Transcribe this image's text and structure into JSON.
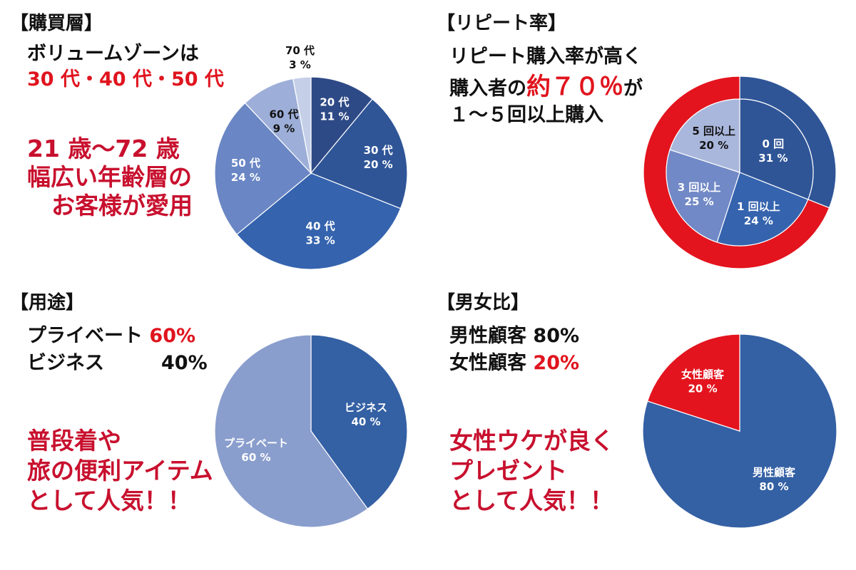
{
  "panels": {
    "buyers": {
      "heading": "【購買層】",
      "line1": "ボリュームゾーンは",
      "line2": "30 代・40 代・50 代",
      "msg": [
        "21 歳～72 歳",
        "幅広い年齢層の",
        "お客様が愛用"
      ]
    },
    "repeat": {
      "heading": "【リピート率】",
      "line1": "リピート購入率が高く",
      "line2a": "購入者の",
      "line2b": "約７０％",
      "line2c": "が",
      "line3": "１～５回以上購入"
    },
    "usage": {
      "heading": "【用途】",
      "row1_label": "プライベート",
      "row1_value": "60%",
      "row2_label": "ビジネス",
      "row2_value": "40%",
      "msg": [
        "普段着や",
        "旅の便利アイテム",
        "として人気！！"
      ]
    },
    "gender": {
      "heading": "【男女比】",
      "row1_label": "男性顧客",
      "row1_value": "80%",
      "row2_label": "女性顧客",
      "row2_value": "20%",
      "msg": [
        "女性ウケが良く",
        "プレゼント",
        "として人気！！"
      ]
    }
  },
  "chart_data": [
    {
      "type": "pie",
      "title": "購買層",
      "categories": [
        "20 代",
        "30 代",
        "40 代",
        "50 代",
        "60 代",
        "70 代"
      ],
      "values": [
        11,
        20,
        33,
        24,
        9,
        3
      ],
      "labels": [
        "11 %",
        "20 %",
        "33 %",
        "24 %",
        "9 %",
        "3 %"
      ],
      "colors": [
        "#2e4a86",
        "#2f5597",
        "#3563ae",
        "#6a86c4",
        "#9dafd8",
        "#c5cfe8"
      ]
    },
    {
      "type": "pie",
      "title": "リピート率",
      "categories": [
        "0 回",
        "1 回以上",
        "3 回以上",
        "5 回以上"
      ],
      "values": [
        31,
        24,
        25,
        20
      ],
      "labels": [
        "31 %",
        "24 %",
        "25 %",
        "20 %"
      ],
      "colors": [
        "#2f5597",
        "#3563ae",
        "#7189c6",
        "#aab7dc"
      ],
      "outer_ring": {
        "categories": [
          "0 回",
          "リピート"
        ],
        "values": [
          31,
          69
        ],
        "colors": [
          "#2f5597",
          "#e3141e"
        ]
      }
    },
    {
      "type": "pie",
      "title": "用途",
      "categories": [
        "ビジネス",
        "プライベート"
      ],
      "values": [
        40,
        60
      ],
      "labels": [
        "40 %",
        "60 %"
      ],
      "colors": [
        "#3460a4",
        "#8a9ecd"
      ]
    },
    {
      "type": "pie",
      "title": "男女比",
      "categories": [
        "男性顧客",
        "女性顧客"
      ],
      "values": [
        80,
        20
      ],
      "labels": [
        "80 %",
        "20 %"
      ],
      "colors": [
        "#3460a4",
        "#e3141e"
      ]
    }
  ]
}
